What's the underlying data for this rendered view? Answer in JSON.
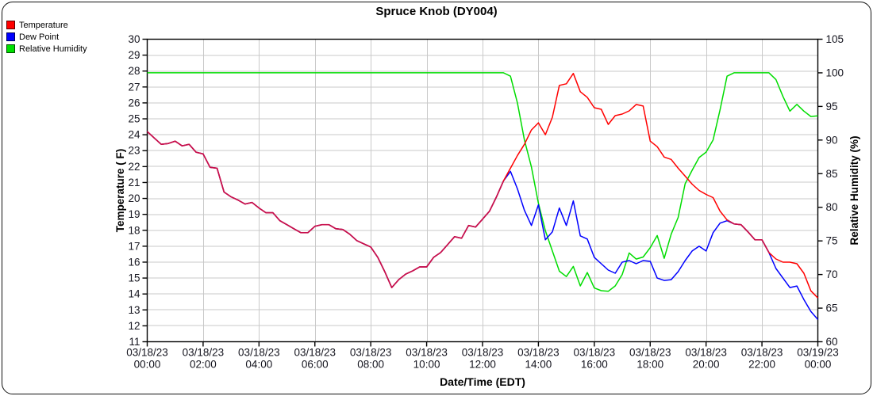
{
  "title": "Spruce Knob (DY004)",
  "legend": {
    "items": [
      {
        "label": "Temperature",
        "color": "#ff0000"
      },
      {
        "label": "Dew Point",
        "color": "#0000ff"
      },
      {
        "label": "Relative Humidity",
        "color": "#00e000"
      }
    ]
  },
  "colors": {
    "temperature_line": "#ff0000",
    "dew_point_line": "#0000ff",
    "humidity_line": "#00dd00",
    "temp_dew_overlap_line": "#c8104c",
    "grid": "#c9c9c9",
    "axis": "#000000",
    "tick_text": "#14141e"
  },
  "chart_data": {
    "type": "line",
    "title": "Spruce Knob (DY004)",
    "xlabel": "Date/Time (EDT)",
    "ylabel_left": "Temperature ( F)",
    "ylabel_right": "Relative Humidity (%)",
    "left_axis": {
      "min": 11,
      "max": 30,
      "step": 1
    },
    "right_axis": {
      "min": 60,
      "max": 105,
      "step": 5
    },
    "x_hours_start": 0,
    "x_hours_end": 24,
    "x_step_hours": 0.25,
    "x_ticks": [
      {
        "date": "03/18/23",
        "time": "00:00"
      },
      {
        "date": "03/18/23",
        "time": "02:00"
      },
      {
        "date": "03/18/23",
        "time": "04:00"
      },
      {
        "date": "03/18/23",
        "time": "06:00"
      },
      {
        "date": "03/18/23",
        "time": "08:00"
      },
      {
        "date": "03/18/23",
        "time": "10:00"
      },
      {
        "date": "03/18/23",
        "time": "12:00"
      },
      {
        "date": "03/18/23",
        "time": "14:00"
      },
      {
        "date": "03/18/23",
        "time": "16:00"
      },
      {
        "date": "03/18/23",
        "time": "18:00"
      },
      {
        "date": "03/18/23",
        "time": "20:00"
      },
      {
        "date": "03/18/23",
        "time": "22:00"
      },
      {
        "date": "03/19/23",
        "time": "00:00"
      }
    ],
    "grid": true,
    "legend_position": "top-left",
    "series": [
      {
        "name": "Temperature",
        "axis": "left",
        "values": [
          24.2,
          23.8,
          23.4,
          23.45,
          23.6,
          23.3,
          23.4,
          22.9,
          22.8,
          21.95,
          21.9,
          20.4,
          20.1,
          19.9,
          19.65,
          19.75,
          19.4,
          19.1,
          19.1,
          18.6,
          18.35,
          18.1,
          17.85,
          17.85,
          18.25,
          18.35,
          18.35,
          18.1,
          18.05,
          17.75,
          17.35,
          17.15,
          16.95,
          16.3,
          15.4,
          14.4,
          14.9,
          15.25,
          15.45,
          15.7,
          15.7,
          16.3,
          16.6,
          17.1,
          17.6,
          17.5,
          18.3,
          18.2,
          18.7,
          19.2,
          20.1,
          21.1,
          21.9,
          22.7,
          23.4,
          24.3,
          24.75,
          24.0,
          25.1,
          27.1,
          27.2,
          27.85,
          26.7,
          26.35,
          25.7,
          25.6,
          24.65,
          25.2,
          25.3,
          25.5,
          25.9,
          25.8,
          23.6,
          23.25,
          22.6,
          22.45,
          21.9,
          21.4,
          20.9,
          20.5,
          20.25,
          20.05,
          19.2,
          18.65,
          18.4,
          18.35,
          17.9,
          17.4,
          17.4,
          16.6,
          16.2,
          16.0,
          16.0,
          15.9,
          15.3,
          14.2,
          13.75
        ]
      },
      {
        "name": "Dew Point",
        "axis": "left",
        "values": [
          24.2,
          23.8,
          23.4,
          23.45,
          23.6,
          23.3,
          23.4,
          22.9,
          22.8,
          21.95,
          21.9,
          20.4,
          20.1,
          19.9,
          19.65,
          19.75,
          19.4,
          19.1,
          19.1,
          18.6,
          18.35,
          18.1,
          17.85,
          17.85,
          18.25,
          18.35,
          18.35,
          18.1,
          18.05,
          17.75,
          17.35,
          17.15,
          16.95,
          16.3,
          15.4,
          14.4,
          14.9,
          15.25,
          15.45,
          15.7,
          15.7,
          16.3,
          16.6,
          17.1,
          17.6,
          17.5,
          18.3,
          18.2,
          18.7,
          19.2,
          20.1,
          21.1,
          21.7,
          20.6,
          19.25,
          18.3,
          19.6,
          17.4,
          17.9,
          19.4,
          18.3,
          19.85,
          17.65,
          17.45,
          16.3,
          15.9,
          15.5,
          15.3,
          16.0,
          16.1,
          15.9,
          16.1,
          16.05,
          15.0,
          14.85,
          14.9,
          15.4,
          16.1,
          16.7,
          17.0,
          16.7,
          17.85,
          18.45,
          18.6,
          18.4,
          18.35,
          17.9,
          17.4,
          17.4,
          16.6,
          15.6,
          15.0,
          14.4,
          14.5,
          13.65,
          12.9,
          12.4
        ]
      },
      {
        "name": "Relative Humidity",
        "axis": "right",
        "values": [
          100,
          100,
          100,
          100,
          100,
          100,
          100,
          100,
          100,
          100,
          100,
          100,
          100,
          100,
          100,
          100,
          100,
          100,
          100,
          100,
          100,
          100,
          100,
          100,
          100,
          100,
          100,
          100,
          100,
          100,
          100,
          100,
          100,
          100,
          100,
          100,
          100,
          100,
          100,
          100,
          100,
          100,
          100,
          100,
          100,
          100,
          100,
          100,
          100,
          100,
          100,
          100,
          99.5,
          95.5,
          90.0,
          86.0,
          80.6,
          76.5,
          73.5,
          70.5,
          69.7,
          71.2,
          68.3,
          70.3,
          68.0,
          67.6,
          67.5,
          68.3,
          70.0,
          73.2,
          72.3,
          72.6,
          74.0,
          75.8,
          72.4,
          76.0,
          78.5,
          83.5,
          85.5,
          87.4,
          88.2,
          90.0,
          94.5,
          99.5,
          100,
          100,
          100,
          100,
          100,
          100,
          99.0,
          96.5,
          94.3,
          95.3,
          94.3,
          93.5,
          93.6
        ]
      }
    ]
  }
}
